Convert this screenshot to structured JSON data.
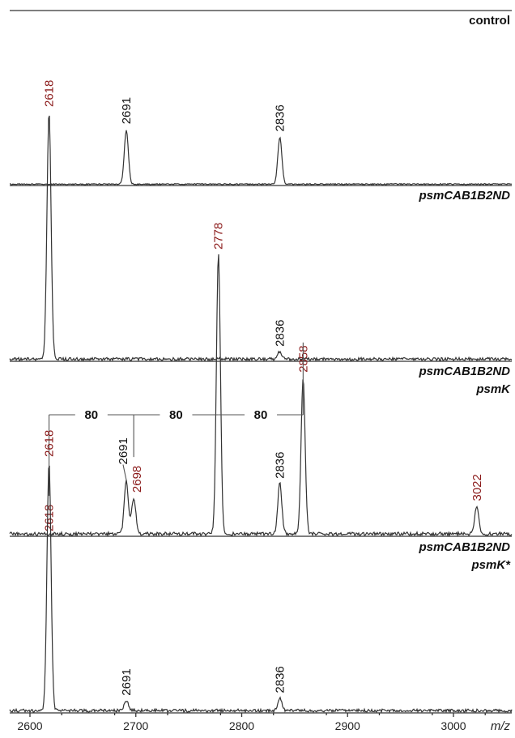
{
  "chart_data": {
    "type": "line",
    "xlabel": "m/z",
    "xlim": [
      2580,
      3060
    ],
    "xticks": [
      2600,
      2700,
      2800,
      2900,
      3000
    ],
    "colors": {
      "trace": "#333333",
      "new_peak_label": "#8b1a1a",
      "existing_peak_label": "#111111"
    },
    "panels": [
      {
        "label_lines": [
          "control"
        ],
        "label_style": "bold",
        "peaks": [
          {
            "mz": 2691,
            "label": "2691",
            "intensity": 0.58,
            "color": "#111111"
          },
          {
            "mz": 2836,
            "label": "2836",
            "intensity": 0.5,
            "color": "#111111"
          }
        ]
      },
      {
        "label_lines": [
          "psmCAB1B2ND"
        ],
        "label_style": "bold-italic",
        "peaks": [
          {
            "mz": 2618,
            "label": "2618",
            "intensity": 1.0,
            "color": "#8b1a1a"
          },
          {
            "mz": 2836,
            "label": "2836",
            "intensity": 0.03,
            "color": "#111111"
          }
        ]
      },
      {
        "label_lines": [
          "psmCAB1B2ND",
          "psmK"
        ],
        "label_style": "bold-italic",
        "peaks": [
          {
            "mz": 2618,
            "label": "2618",
            "intensity": 0.0,
            "color": "#8b1a1a"
          },
          {
            "mz": 2691,
            "label": "2691",
            "intensity": 0.19,
            "color": "#111111"
          },
          {
            "mz": 2698,
            "label": "2698",
            "intensity": 0.13,
            "color": "#8b1a1a"
          },
          {
            "mz": 2778,
            "label": "2778",
            "intensity": 1.0,
            "color": "#8b1a1a"
          },
          {
            "mz": 2836,
            "label": "2836",
            "intensity": 0.18,
            "color": "#111111"
          },
          {
            "mz": 2858,
            "label": "2858",
            "intensity": 0.56,
            "color": "#8b1a1a"
          },
          {
            "mz": 3022,
            "label": "3022",
            "intensity": 0.1,
            "color": "#8b1a1a"
          }
        ],
        "brackets": [
          {
            "from": 2618,
            "to": 2698,
            "label": "80"
          },
          {
            "from": 2698,
            "to": 2778,
            "label": "80"
          },
          {
            "from": 2778,
            "to": 2858,
            "label": "80"
          }
        ]
      },
      {
        "label_lines": [
          "psmCAB1B2ND",
          "psmK*"
        ],
        "label_style": "bold-italic",
        "peaks": [
          {
            "mz": 2618,
            "label": "2618",
            "intensity": 1.0,
            "color": "#8b1a1a"
          },
          {
            "mz": 2691,
            "label": "2691",
            "intensity": 0.04,
            "color": "#111111"
          },
          {
            "mz": 2836,
            "label": "2836",
            "intensity": 0.05,
            "color": "#111111"
          }
        ]
      }
    ]
  }
}
